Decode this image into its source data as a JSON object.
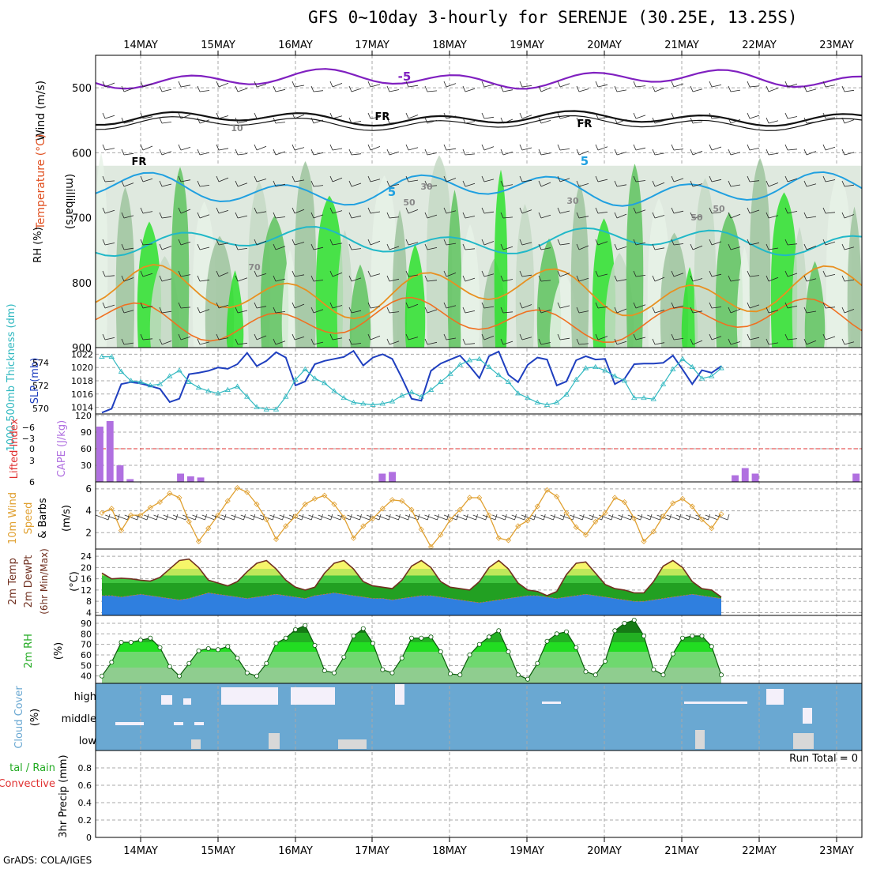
{
  "title": "GFS 0~10day 3-hourly for SERENJE (30.25E, 13.25S)",
  "footer": "GrADS: COLA/IGES",
  "date_labels": [
    "14MAY",
    "15MAY",
    "16MAY",
    "17MAY",
    "18MAY",
    "19MAY",
    "20MAY",
    "21MAY",
    "22MAY",
    "23MAY"
  ],
  "colors": {
    "slp": "#1f3fbf",
    "thickness": "#30b8c0",
    "cape": "#b070e0",
    "lifted": "#e03030",
    "wind": "#e0a030",
    "temp_line": "#703020",
    "rh_fill": "#22cc22",
    "cloud_bg": "#6aa8d2",
    "cloud_fill": "#f4f0fa",
    "purple_line": "#8020c0",
    "cyan_line": "#20a0e0"
  },
  "panels": {
    "upper": {
      "labels": {
        "rh": "RH (%)",
        "temp": "Temperature (°C)",
        "wind": "Wind (m/s)",
        "unit": "(millibars)"
      },
      "ticks": [
        500,
        600,
        700,
        800,
        900
      ],
      "contour_labels": [
        "-5",
        "FR",
        "FR",
        "FR",
        "5",
        "5",
        "10",
        "30",
        "50",
        "50",
        "70",
        "30",
        "50"
      ]
    },
    "slp": {
      "label_thk": "1000-500mb Thickness (dm)",
      "label_slp": "SLP (mb)",
      "ticks_thk": [
        570,
        572,
        574
      ],
      "ticks_slp": [
        1014,
        1016,
        1018,
        1020,
        1022
      ]
    },
    "cape": {
      "label_li": "Lifted Index",
      "label_cape": "CAPE (J/kg)",
      "ticks_li": [
        -6,
        -3,
        0,
        3,
        6
      ],
      "ticks_cape": [
        30,
        60,
        90,
        120
      ]
    },
    "wind10": {
      "label": "10m Wind",
      "label2": "Speed",
      "label3": "& Barbs",
      "unit": "(m/s)",
      "ticks": [
        2,
        4,
        6
      ]
    },
    "temp2m": {
      "label": "2m Temp",
      "label2": "2m DewPt",
      "label3": "(6hr Min/Max)",
      "unit": "(°C)",
      "ticks": [
        4,
        8,
        12,
        16,
        20,
        24
      ]
    },
    "rh2m": {
      "label": "2m RH",
      "unit": "(%)",
      "ticks": [
        40,
        50,
        60,
        70,
        80,
        90
      ]
    },
    "cloud": {
      "label": "Cloud Cover",
      "unit": "(%)",
      "levels": [
        "high",
        "middle",
        "low"
      ]
    },
    "precip": {
      "label": "3hr Precip (mm)",
      "label_total": "tal / Rain",
      "label_conv": "Convective",
      "run_total": "Run Total = 0",
      "ticks": [
        0,
        0.2,
        0.4,
        0.6,
        0.8
      ]
    }
  },
  "chart_data": [
    {
      "type": "line",
      "name": "slp",
      "ylabel": "SLP (mb)",
      "ylim": [
        1013,
        1023
      ],
      "series": [
        {
          "name": "SLP",
          "values": [
            1013.2,
            1013.8,
            1017.5,
            1017.8,
            1017.6,
            1017.2,
            1016.8,
            1014.8,
            1015.3,
            1019,
            1019.2,
            1019.5,
            1020,
            1019.8,
            1020.5,
            1022.2,
            1020.2,
            1021,
            1022.3,
            1021.5,
            1017.3,
            1017.9,
            1020.5,
            1021,
            1021.3,
            1021.6,
            1022.5,
            1020.3,
            1021.5,
            1022,
            1021.3,
            1018.4,
            1015.3,
            1015,
            1019.5,
            1020.6,
            1021.2,
            1021.8,
            1020.2,
            1018.4,
            1021.7,
            1022.4,
            1018.9,
            1017.8,
            1020.4,
            1021.5,
            1021.2,
            1017.3,
            1017.9,
            1021.1,
            1021.7,
            1021.2,
            1021.3,
            1017.5,
            1018.3,
            1020.5,
            1020.6,
            1020.6,
            1020.7,
            1021.8,
            1019.7,
            1017.5,
            1019.6,
            1019.2,
            1020.2
          ]
        }
      ]
    },
    {
      "type": "line",
      "name": "thickness",
      "ylabel": "1000-500mb Thickness (dm)",
      "ylim": [
        569.5,
        575.3
      ],
      "series": [
        {
          "name": "Thickness",
          "values": [
            574.5,
            574.5,
            573.2,
            572.4,
            572.3,
            572,
            572.1,
            572.8,
            573.3,
            572.3,
            571.8,
            571.5,
            571.3,
            571.6,
            571.9,
            571,
            570.1,
            569.9,
            569.9,
            571,
            572.5,
            573.4,
            572.6,
            572.2,
            571.5,
            570.9,
            570.5,
            570.4,
            570.3,
            570.4,
            570.6,
            571.1,
            571.4,
            571,
            571.6,
            572.3,
            573,
            573.8,
            574.2,
            574.3,
            573.6,
            572.9,
            572.3,
            571.3,
            570.9,
            570.5,
            570.3,
            570.5,
            571.2,
            572.5,
            573.5,
            573.6,
            573.3,
            572.8,
            572.4,
            570.9,
            570.9,
            570.8,
            572.1,
            573.4,
            574.3,
            573.6,
            572.6,
            572.8,
            573.5
          ]
        }
      ]
    },
    {
      "type": "bar",
      "name": "cape",
      "ylabel": "CAPE (J/kg)",
      "ylim": [
        0,
        120
      ],
      "values": [
        100,
        110,
        30,
        5,
        0,
        0,
        0,
        0,
        15,
        10,
        8,
        0,
        0,
        0,
        0,
        0,
        0,
        0,
        0,
        0,
        0,
        0,
        0,
        0,
        0,
        0,
        0,
        0,
        15,
        18,
        0,
        0,
        0,
        0,
        0,
        0,
        0,
        0,
        0,
        0,
        0,
        0,
        0,
        0,
        0,
        0,
        0,
        0,
        0,
        0,
        0,
        0,
        0,
        0,
        0,
        0,
        0,
        0,
        0,
        0,
        0,
        0,
        0,
        12,
        25,
        15,
        0,
        0,
        0,
        0,
        0,
        0,
        0,
        0,
        0,
        15
      ]
    },
    {
      "type": "line",
      "name": "wind10m",
      "ylabel": "Speed (m/s)",
      "ylim": [
        0.5,
        6.5
      ],
      "series": [
        {
          "name": "10m wind speed",
          "values": [
            3.8,
            4.2,
            2.2,
            3.6,
            3.6,
            4.3,
            4.8,
            5.6,
            5.2,
            3,
            1.2,
            2.4,
            3.6,
            4.9,
            6.1,
            5.7,
            4.6,
            3.2,
            1.4,
            2.6,
            3.5,
            4.6,
            5.1,
            5.4,
            4.6,
            3.4,
            1.5,
            2.6,
            3.3,
            4.2,
            5,
            4.9,
            4.1,
            2.3,
            0.7,
            1.8,
            3.2,
            4.1,
            5.2,
            5.2,
            3.6,
            1.5,
            1.3,
            2.6,
            3.1,
            4.4,
            5.9,
            5.3,
            3.8,
            2.5,
            1.8,
            3,
            3.8,
            5.2,
            4.8,
            3.3,
            1.2,
            2.1,
            3.5,
            4.7,
            5.1,
            4.4,
            3.2,
            2.4,
            3.7
          ]
        }
      ]
    },
    {
      "type": "area",
      "name": "temp2m",
      "ylabel": "(°C)",
      "ylim": [
        3,
        26
      ],
      "series": [
        {
          "name": "2m Temp",
          "values": [
            18,
            16,
            16.2,
            16,
            15.5,
            15.2,
            16.5,
            19.5,
            22.5,
            23,
            20,
            15.5,
            14.5,
            13.5,
            15,
            18.5,
            21.5,
            22.5,
            19.5,
            15.5,
            13,
            12,
            13,
            18,
            21.5,
            22.5,
            19.5,
            15,
            13.5,
            13,
            12.5,
            15.5,
            20.5,
            22.5,
            20,
            15,
            13,
            12.5,
            12,
            15,
            20,
            22.5,
            19.5,
            14.5,
            12,
            11.5,
            10,
            11.5,
            17.5,
            21.5,
            22,
            18,
            14,
            12.5,
            12,
            11,
            11,
            15,
            20.5,
            22.5,
            20,
            15,
            12.5,
            12,
            9.5
          ]
        },
        {
          "name": "2m DewPt",
          "values": [
            10,
            10,
            9.5,
            10,
            10.5,
            10,
            9.5,
            9,
            8.5,
            9,
            10,
            11,
            10.5,
            10,
            9.5,
            9,
            9.5,
            10,
            10.5,
            10,
            9.5,
            9,
            10,
            10.5,
            11,
            10.5,
            10,
            9.5,
            9,
            9,
            8.5,
            9,
            9.5,
            10,
            10,
            9.5,
            9,
            8.5,
            8,
            7.5,
            8,
            8.5,
            9,
            9.5,
            10,
            10,
            9.5,
            9,
            9.5,
            10,
            10.5,
            10,
            9.5,
            9,
            8.5,
            8,
            8,
            8.5,
            9,
            9.5,
            10,
            10.5,
            10,
            9.5,
            9
          ]
        }
      ]
    },
    {
      "type": "area",
      "name": "rh2m",
      "ylabel": "(%)",
      "ylim": [
        33,
        96
      ],
      "series": [
        {
          "name": "2m RH",
          "values": [
            40,
            53,
            72,
            72,
            74,
            76,
            67,
            49,
            40,
            52,
            64,
            66,
            65,
            68,
            57,
            43,
            40,
            52,
            71,
            76,
            84,
            88,
            69,
            45,
            43,
            58,
            78,
            85,
            71,
            46,
            43,
            57,
            76,
            76,
            77,
            63,
            42,
            41,
            60,
            70,
            77,
            83,
            63,
            41,
            37,
            52,
            73,
            80,
            82,
            67,
            44,
            41,
            54,
            83,
            90,
            93,
            78,
            46,
            41,
            61,
            76,
            78,
            78,
            68,
            41
          ]
        }
      ]
    }
  ]
}
